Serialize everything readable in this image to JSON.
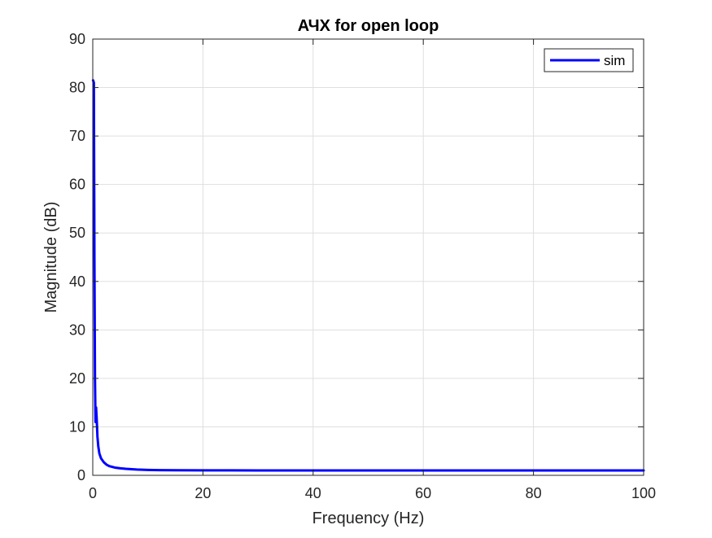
{
  "chart_data": {
    "type": "line",
    "title": "АЧХ for open loop",
    "xlabel": "Frequency (Hz)",
    "ylabel": "Magnitude (dB)",
    "xlim": [
      0,
      100
    ],
    "ylim": [
      0,
      90
    ],
    "xticks": [
      0,
      20,
      40,
      60,
      80,
      100
    ],
    "xtick_labels": [
      "0",
      "20",
      "40",
      "60",
      "80",
      "100"
    ],
    "yticks": [
      0,
      10,
      20,
      30,
      40,
      50,
      60,
      70,
      80,
      90
    ],
    "ytick_labels": [
      "0",
      "10",
      "20",
      "30",
      "40",
      "50",
      "60",
      "70",
      "80",
      "90"
    ],
    "grid": true,
    "legend_position": "top-right",
    "series": [
      {
        "name": "sim",
        "color": "#0000ff",
        "x": [
          0.05,
          0.2,
          0.3,
          0.4,
          0.5,
          0.6,
          0.7,
          0.85,
          1.0,
          1.2,
          1.5,
          2.0,
          2.5,
          3.0,
          4.0,
          5.0,
          6.0,
          8.0,
          10.0,
          12.0,
          15.0,
          20.0,
          25.0,
          30.0,
          40.0,
          50.0,
          60.0,
          70.0,
          80.0,
          90.0,
          100.0
        ],
        "y": [
          81.5,
          81.0,
          45.0,
          20.0,
          11.0,
          14.0,
          12.0,
          8.0,
          6.0,
          4.5,
          3.5,
          2.7,
          2.2,
          1.9,
          1.6,
          1.45,
          1.35,
          1.2,
          1.12,
          1.08,
          1.05,
          1.03,
          1.02,
          1.01,
          1.0,
          1.0,
          1.0,
          1.0,
          1.0,
          1.0,
          1.0
        ]
      }
    ]
  }
}
